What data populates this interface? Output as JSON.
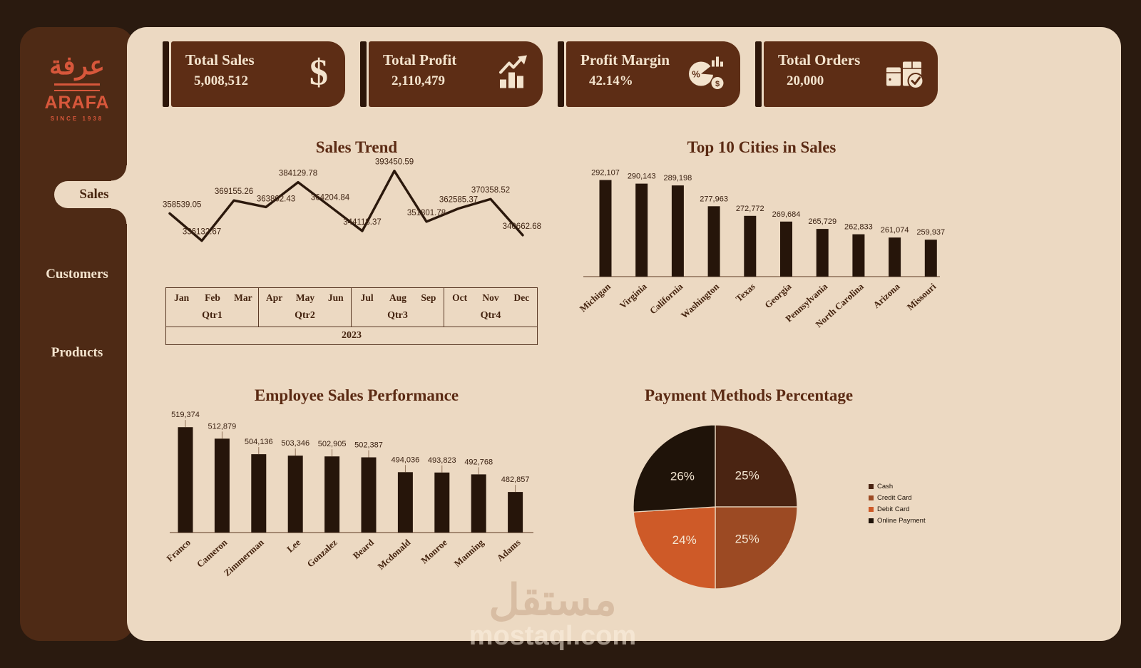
{
  "sidebar": {
    "logo": {
      "arabic": "عرفة",
      "brand": "ARAFA",
      "tagline": "SINCE 1938"
    },
    "items": [
      {
        "label": "Sales",
        "active": true
      },
      {
        "label": "Customers",
        "active": false
      },
      {
        "label": "Products",
        "active": false
      }
    ]
  },
  "kpis": [
    {
      "title": "Total Sales",
      "value": "5,008,512",
      "icon": "dollar-icon"
    },
    {
      "title": "Total Profit",
      "value": "2,110,479",
      "icon": "trending-bars-icon"
    },
    {
      "title": "Profit Margin",
      "value": "42.14%",
      "icon": "pie-percent-icon"
    },
    {
      "title": "Total Orders",
      "value": "20,000",
      "icon": "orders-check-icon"
    }
  ],
  "chart_data": [
    {
      "type": "line",
      "title": "Sales Trend",
      "x": [
        "Jan",
        "Feb",
        "Mar",
        "Apr",
        "May",
        "Jun",
        "Jul",
        "Aug",
        "Sep",
        "Oct",
        "Nov",
        "Dec"
      ],
      "quarters": [
        "Qtr1",
        "Qtr2",
        "Qtr3",
        "Qtr4"
      ],
      "year": "2023",
      "values": [
        358539.05,
        336132.67,
        369155.26,
        363802.43,
        384129.78,
        364204.84,
        344118.37,
        393450.59,
        351801.78,
        362585.37,
        370358.52,
        340662.68
      ],
      "ylim": [
        330000,
        398000
      ],
      "line_color": "#2b180c",
      "grid": false
    },
    {
      "type": "bar",
      "title": "Top 10 Cities in Sales",
      "categories": [
        "Michigan",
        "Virginia",
        "California",
        "Washington",
        "Texas",
        "Georgia",
        "Pennsylvania",
        "North Carolina",
        "Arizona",
        "Missouri"
      ],
      "values": [
        292107,
        290143,
        289198,
        277963,
        272772,
        269684,
        265729,
        262833,
        261074,
        259937
      ],
      "bar_color": "#26150a",
      "ylim": [
        240000,
        300000
      ],
      "grid": false
    },
    {
      "type": "bar",
      "title": "Employee Sales Performance",
      "categories": [
        "Franco",
        "Cameron",
        "Zimmerman",
        "Lee",
        "Gonzalez",
        "Beard",
        "Mcdonald",
        "Monroe",
        "Manning",
        "Adams"
      ],
      "values": [
        519374,
        512879,
        504136,
        503346,
        502905,
        502387,
        494036,
        493823,
        492768,
        482857
      ],
      "bar_color": "#26150a",
      "ylim": [
        460000,
        525000
      ],
      "grid": false
    },
    {
      "type": "pie",
      "title": "Payment Methods Percentage",
      "labels": [
        "Cash",
        "Credit Card",
        "Debit Card",
        "Online Payment"
      ],
      "values": [
        25,
        25,
        24,
        26
      ],
      "display": [
        "25%",
        "25%",
        "24%",
        "26%"
      ],
      "colors": [
        "#4a2412",
        "#9c4a23",
        "#ce5a28",
        "#1f1309"
      ],
      "legend_position": "right"
    }
  ],
  "watermark": {
    "line1": "مستقل",
    "line2": "mostaql.com"
  },
  "colors": {
    "outer_bg": "#2a1a0f",
    "sidebar": "#4e2a15",
    "panel": "#ecd9c2",
    "card": "#5d2d15",
    "card_accent": "#2d1609",
    "card_text": "#f3e3cd",
    "title_text": "#5b2a13",
    "bar": "#26150a",
    "logo_orange": "#d7573b"
  }
}
